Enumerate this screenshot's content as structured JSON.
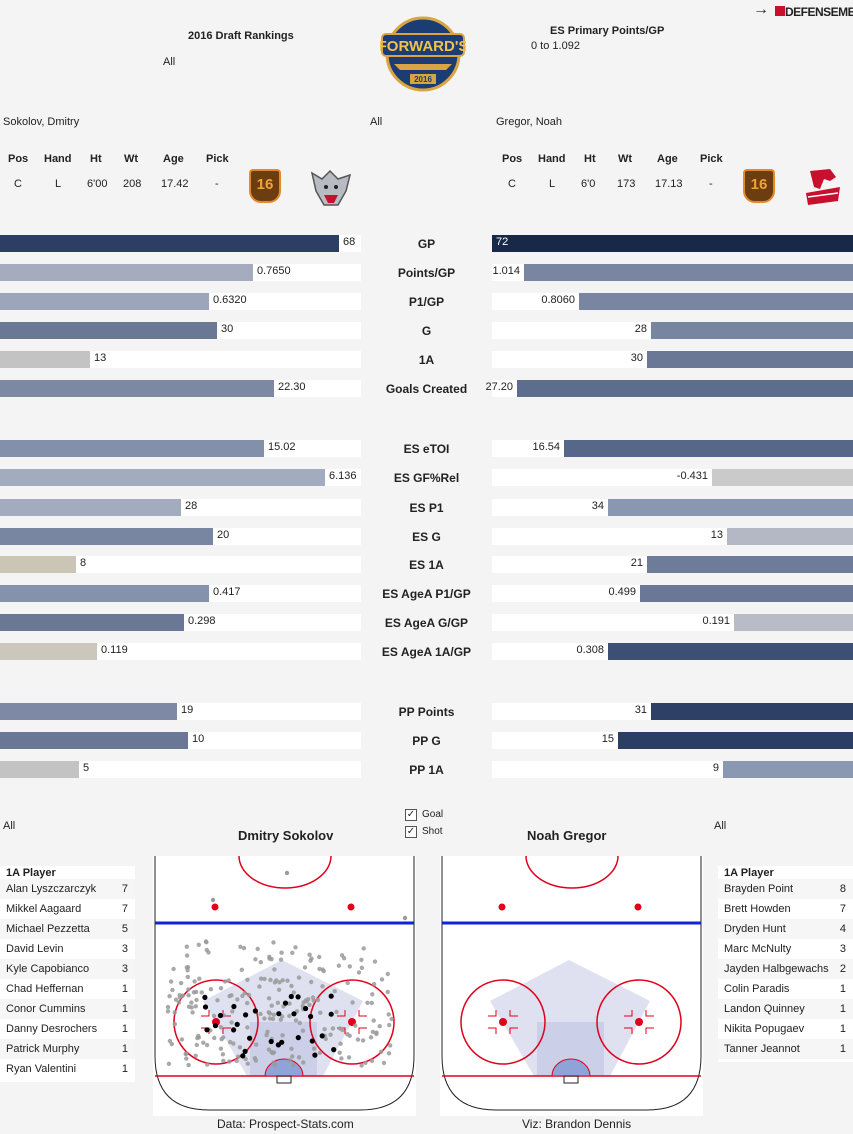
{
  "header": {
    "draft_title": "2016 Draft Rankings",
    "draft_filter": "All",
    "es_title": "ES Primary Points/GP",
    "es_range": "0 to 1.092",
    "logo_text": "FORWARD'S",
    "logo_year": "2016",
    "defensemen_link": "DEFENSEMEN",
    "arrow": "→"
  },
  "middle_filter": "All",
  "player_left": {
    "name": "Sokolov, Dmitry",
    "headers": [
      "Pos",
      "Hand",
      "Ht",
      "Wt",
      "Age",
      "Pick"
    ],
    "values": [
      "C",
      "L",
      "6'00",
      "208",
      "17.42",
      "-"
    ],
    "badge": "16"
  },
  "player_right": {
    "name": "Gregor, Noah",
    "headers": [
      "Pos",
      "Hand",
      "Ht",
      "Wt",
      "Age",
      "Pick"
    ],
    "values": [
      "C",
      "L",
      "6'0",
      "173",
      "17.13",
      "-"
    ],
    "badge": "16"
  },
  "stats": [
    {
      "metric": "GP",
      "left": "68",
      "right": "72"
    },
    {
      "metric": "Points/GP",
      "left": "0.7650",
      "right": "1.014"
    },
    {
      "metric": "P1/GP",
      "left": "0.6320",
      "right": "0.8060"
    },
    {
      "metric": "G",
      "left": "30",
      "right": "28"
    },
    {
      "metric": "1A",
      "left": "13",
      "right": "30"
    },
    {
      "metric": "Goals Created",
      "left": "22.30",
      "right": "27.20"
    },
    {
      "metric": "ES eTOI",
      "left": "15.02",
      "right": "16.54"
    },
    {
      "metric": "ES GF%Rel",
      "left": "6.136",
      "right": "-0.431"
    },
    {
      "metric": "ES P1",
      "left": "28",
      "right": "34"
    },
    {
      "metric": "ES G",
      "left": "20",
      "right": "13"
    },
    {
      "metric": "ES 1A",
      "left": "8",
      "right": "21"
    },
    {
      "metric": "ES AgeA P1/GP",
      "left": "0.417",
      "right": "0.499"
    },
    {
      "metric": "ES AgeA G/GP",
      "left": "0.298",
      "right": "0.191"
    },
    {
      "metric": "ES AgeA 1A/GP",
      "left": "0.119",
      "right": "0.308"
    },
    {
      "metric": "PP Points",
      "left": "19",
      "right": "31"
    },
    {
      "metric": "PP G",
      "left": "10",
      "right": "15"
    },
    {
      "metric": "PP 1A",
      "left": "5",
      "right": "9"
    }
  ],
  "stat_levels": {
    "left": [
      0.94,
      0.7,
      0.58,
      0.6,
      0.25,
      0.76,
      0.73,
      0.9,
      0.5,
      0.59,
      0.21,
      0.58,
      0.51,
      0.27,
      0.49,
      0.52,
      0.22
    ],
    "right": [
      1.0,
      0.91,
      0.76,
      0.56,
      0.57,
      0.93,
      0.8,
      0.39,
      0.68,
      0.35,
      0.57,
      0.59,
      0.33,
      0.68,
      0.56,
      0.65,
      0.36
    ]
  },
  "colors": {
    "left": [
      "#2c3e63",
      "#a4acbe",
      "#9ca5b9",
      "#6a7896",
      "#c3c3c3",
      "#7d89a3",
      "#8390aa",
      "#a3abbe",
      "#a3abbe",
      "#7986a1",
      "#cbc5b6",
      "#8592ac",
      "#6a7896",
      "#cbc7ba",
      "#7e8aa5",
      "#6a7896",
      "#c3c3c3"
    ],
    "right": [
      "#182848",
      "#7985a1",
      "#7985a1",
      "#7785a1",
      "#6a7896",
      "#5d6d8e",
      "#56678a",
      "#cacaca",
      "#8a97b0",
      "#b3b8c4",
      "#6e7c99",
      "#6a7896",
      "#b8bcc6",
      "#3e4f75",
      "#2f4066",
      "#2c3e63",
      "#8b98b1"
    ],
    "rink_line_red": "#e0001b",
    "rink_line_blue": "#1122dd",
    "zone_fill": "#c9cde6"
  },
  "rink_section": {
    "left_filter": "All",
    "right_filter": "All",
    "left_title": "Dmitry Sokolov",
    "right_title": "Noah Gregor",
    "legend_goal": "Goal",
    "legend_shot": "Shot",
    "check_mark": "✓"
  },
  "assists_left": {
    "title": "1A Player",
    "rows": [
      {
        "name": "Alan Lyszczarczyk",
        "count": "7"
      },
      {
        "name": "Mikkel Aagaard",
        "count": "7"
      },
      {
        "name": "Michael Pezzetta",
        "count": "5"
      },
      {
        "name": "David Levin",
        "count": "3"
      },
      {
        "name": "Kyle Capobianco",
        "count": "3"
      },
      {
        "name": "Chad Heffernan",
        "count": "1"
      },
      {
        "name": "Conor Cummins",
        "count": "1"
      },
      {
        "name": "Danny Desrochers",
        "count": "1"
      },
      {
        "name": "Patrick Murphy",
        "count": "1"
      },
      {
        "name": "Ryan Valentini",
        "count": "1"
      }
    ]
  },
  "assists_right": {
    "title": "1A Player",
    "rows": [
      {
        "name": "Brayden Point",
        "count": "8"
      },
      {
        "name": "Brett Howden",
        "count": "7"
      },
      {
        "name": "Dryden Hunt",
        "count": "4"
      },
      {
        "name": "Marc McNulty",
        "count": "3"
      },
      {
        "name": "Jayden Halbgewachs",
        "count": "2"
      },
      {
        "name": "Colin Paradis",
        "count": "1"
      },
      {
        "name": "Landon Quinney",
        "count": "1"
      },
      {
        "name": "Nikita Popugaev",
        "count": "1"
      },
      {
        "name": "Tanner Jeannot",
        "count": "1"
      }
    ]
  },
  "footer": {
    "data_credit": "Data: Prospect-Stats.com",
    "viz_credit": "Viz: Brandon Dennis"
  }
}
